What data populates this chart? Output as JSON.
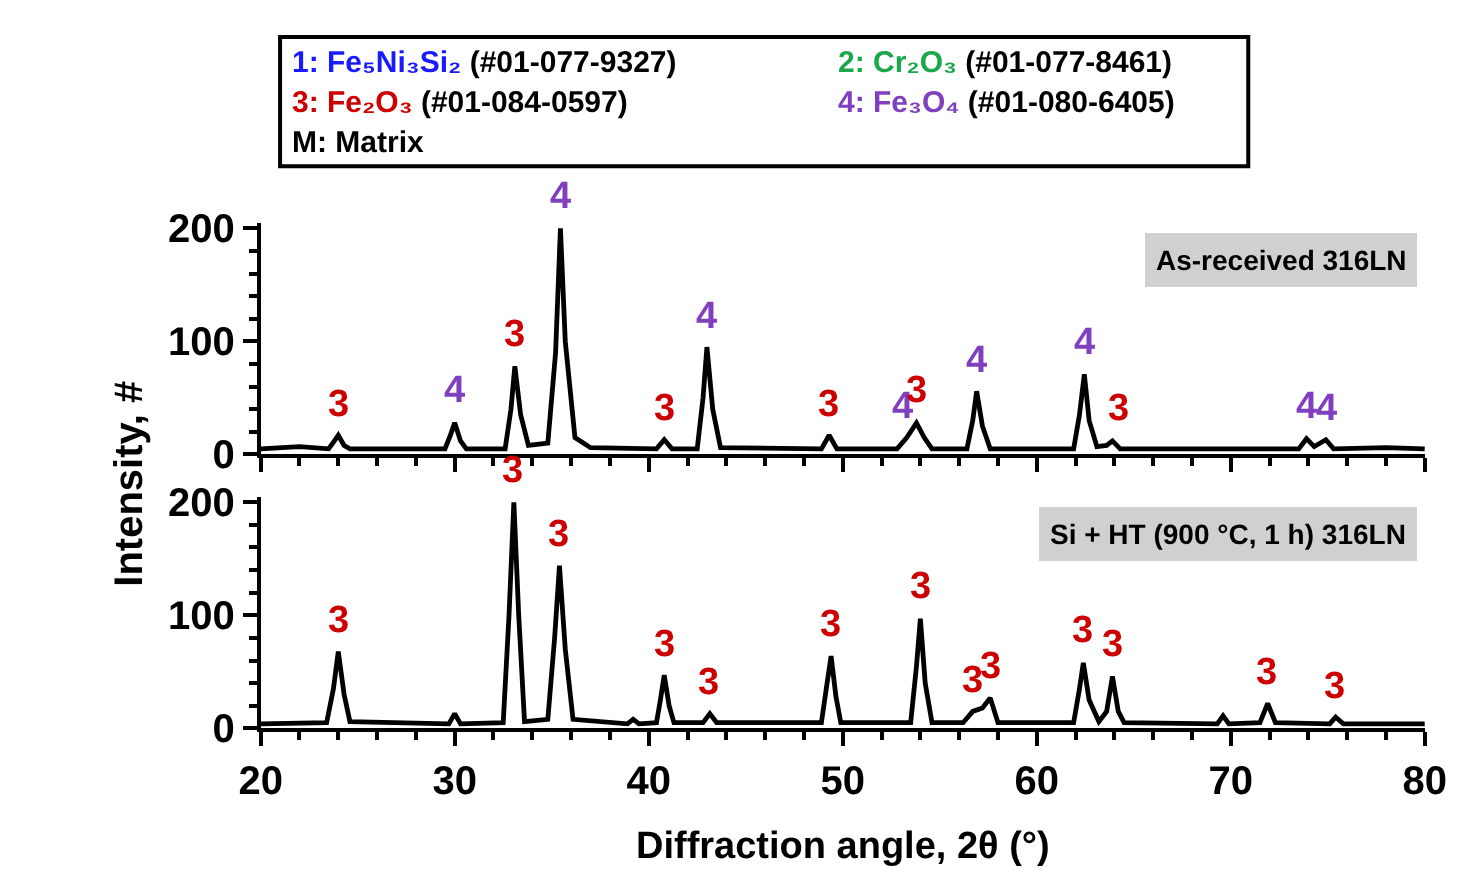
{
  "chart_data": [
    {
      "type": "line",
      "title": "As-received 316LN",
      "ylabel": "Intensity, #",
      "tick_labels": "y",
      "xlim": [
        20,
        80
      ],
      "xticks": [
        20,
        30,
        40,
        50,
        60,
        70,
        80
      ],
      "ylim": [
        0,
        205
      ],
      "yticks": [
        0,
        100,
        200
      ],
      "series": [
        {
          "color": "#000000",
          "x": [
            20,
            22,
            23.5,
            23.8,
            24.0,
            24.3,
            24.6,
            27,
            29.5,
            29.8,
            30.0,
            30.3,
            30.6,
            32.6,
            32.9,
            33.1,
            33.4,
            33.8,
            34.8,
            35.2,
            35.45,
            35.7,
            36.2,
            37,
            40.4,
            40.8,
            41.2,
            42.5,
            42.8,
            43.0,
            43.3,
            43.7,
            48.9,
            49.3,
            49.7,
            52.8,
            53.3,
            53.8,
            54.2,
            54.6,
            56.4,
            56.7,
            56.9,
            57.2,
            57.6,
            61.9,
            62.2,
            62.45,
            62.7,
            63.1,
            63.6,
            63.9,
            64.3,
            73.5,
            73.9,
            74.3,
            74.9,
            75.3,
            78,
            80
          ],
          "values": [
            5,
            7,
            5,
            12,
            17,
            8,
            5,
            5,
            5,
            18,
            28,
            12,
            5,
            5,
            40,
            78,
            35,
            8,
            10,
            90,
            200,
            100,
            15,
            6,
            5,
            13,
            5,
            5,
            50,
            95,
            40,
            6,
            5,
            17,
            5,
            5,
            15,
            28,
            15,
            5,
            5,
            30,
            56,
            25,
            5,
            5,
            35,
            71,
            30,
            7,
            8,
            12,
            5,
            5,
            14,
            7,
            13,
            5,
            6,
            5
          ]
        }
      ],
      "annotations": [
        "1: Fe₅Ni₃Si₂ (#01-077-9327)",
        "2: Cr₂O₃ (#01-077-8461)",
        "3: Fe₂O₃ (#01-084-0597)",
        "4: Fe₃O₄ (#01-080-6405)",
        "M: Matrix",
        {
          "text": "3",
          "x": 24.0,
          "y": 17
        },
        {
          "text": "4",
          "x": 30.0,
          "y": 28
        },
        {
          "text": "3",
          "x": 33.1,
          "y": 78
        },
        {
          "text": "4",
          "x": 35.45,
          "y": 200
        },
        {
          "text": "3",
          "x": 40.8,
          "y": 13
        },
        {
          "text": "4",
          "x": 43.0,
          "y": 95
        },
        {
          "text": "3",
          "x": 49.3,
          "y": 17
        },
        {
          "text": "4",
          "x": 53.1,
          "y": 15
        },
        {
          "text": "3",
          "x": 53.8,
          "y": 28
        },
        {
          "text": "4",
          "x": 56.9,
          "y": 56
        },
        {
          "text": "4",
          "x": 62.45,
          "y": 71
        },
        {
          "text": "3",
          "x": 64.2,
          "y": 12
        },
        {
          "text": "4",
          "x": 73.9,
          "y": 14
        },
        {
          "text": "4",
          "x": 75.0,
          "y": 13
        }
      ]
    },
    {
      "type": "line",
      "title": "Si + HT (900 °C, 1 h) 316LN",
      "xlabel": "Diffraction angle, 2θ (°)",
      "xlim": [
        20,
        80
      ],
      "xticks": [
        20,
        30,
        40,
        50,
        60,
        70,
        80
      ],
      "ylim": [
        0,
        205
      ],
      "yticks": [
        0,
        100,
        200
      ],
      "series": [
        {
          "color": "#000000",
          "x": [
            20,
            23.4,
            23.75,
            24.0,
            24.3,
            24.6,
            29.7,
            30.0,
            30.3,
            32.5,
            32.8,
            33.05,
            33.3,
            33.6,
            34.8,
            35.15,
            35.4,
            35.7,
            36.1,
            38.9,
            39.2,
            39.5,
            40.4,
            40.6,
            40.8,
            41.05,
            41.3,
            42.8,
            43.15,
            43.5,
            48.9,
            49.15,
            49.4,
            49.65,
            49.9,
            53.5,
            53.8,
            54.0,
            54.25,
            54.6,
            56.2,
            56.7,
            57.2,
            57.6,
            58.0,
            61.9,
            62.2,
            62.4,
            62.7,
            63.2,
            63.6,
            63.9,
            64.2,
            64.5,
            69.3,
            69.6,
            69.9,
            71.5,
            71.9,
            72.3,
            75.1,
            75.4,
            75.8,
            80
          ],
          "values": [
            4,
            5,
            35,
            68,
            30,
            6,
            4,
            13,
            4,
            5,
            100,
            200,
            100,
            6,
            8,
            80,
            144,
            70,
            8,
            4,
            8,
            4,
            5,
            25,
            47,
            20,
            5,
            5,
            13,
            5,
            5,
            35,
            64,
            28,
            5,
            5,
            55,
            97,
            40,
            5,
            5,
            15,
            18,
            27,
            5,
            5,
            35,
            58,
            25,
            6,
            15,
            46,
            15,
            5,
            4,
            11,
            4,
            5,
            22,
            5,
            4,
            10,
            4,
            4
          ]
        }
      ],
      "annotations": [
        {
          "text": "3",
          "x": 24.0,
          "y": 68
        },
        {
          "text": "3",
          "x": 33.05,
          "y": 200
        },
        {
          "text": "3",
          "x": 35.4,
          "y": 144
        },
        {
          "text": "3",
          "x": 40.8,
          "y": 47
        },
        {
          "text": "3",
          "x": 43.15,
          "y": 13
        },
        {
          "text": "3",
          "x": 49.4,
          "y": 64
        },
        {
          "text": "3",
          "x": 54.0,
          "y": 97
        },
        {
          "text": "3",
          "x": 56.7,
          "y": 15
        },
        {
          "text": "3",
          "x": 57.6,
          "y": 27
        },
        {
          "text": "3",
          "x": 62.4,
          "y": 58
        },
        {
          "text": "3",
          "x": 63.9,
          "y": 46
        },
        {
          "text": "3",
          "x": 71.9,
          "y": 22
        },
        {
          "text": "3",
          "x": 75.4,
          "y": 10
        }
      ]
    }
  ]
}
